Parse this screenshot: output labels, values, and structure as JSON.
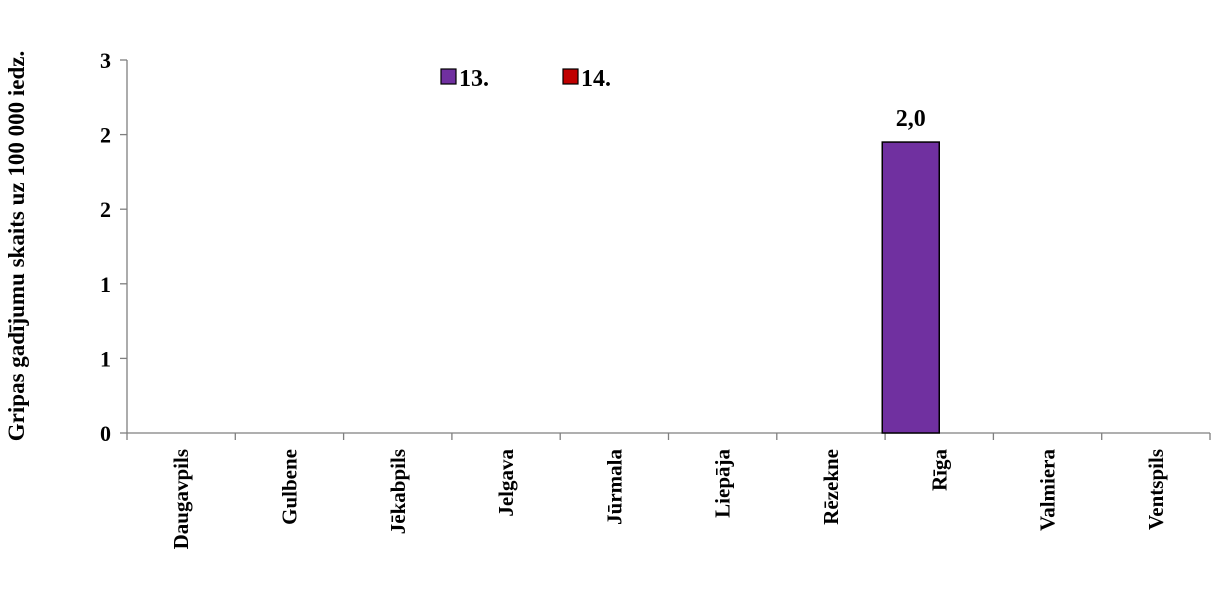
{
  "chart_data": {
    "type": "bar",
    "title": "",
    "xlabel": "",
    "ylabel": "Gripas gadījumu skaits uz 100 000 iedz.",
    "categories": [
      "Daugavpils",
      "Gulbene",
      "Jēkabpils",
      "Jelgava",
      "Jūrmala",
      "Liepāja",
      "Rēzekne",
      "Rīga",
      "Valmiera",
      "Ventspils"
    ],
    "series": [
      {
        "name": "13.",
        "color": "#7030A0",
        "values": [
          0,
          0,
          0,
          0,
          0,
          0,
          0,
          1.95,
          0,
          0
        ]
      },
      {
        "name": "14.",
        "color": "#C00000",
        "values": [
          0,
          0,
          0,
          0,
          0,
          0,
          0,
          0,
          0,
          0
        ]
      }
    ],
    "data_labels": [
      {
        "series": 0,
        "category": "Rīga",
        "text": "2,0"
      }
    ],
    "ylim": [
      0,
      2.5
    ],
    "yticks": [
      0,
      0.5,
      1,
      1.5,
      2,
      2.5
    ],
    "ytick_labels": [
      "0",
      "1",
      "1",
      "2",
      "2",
      "3"
    ],
    "legend_position": "top-center",
    "grid": false
  }
}
